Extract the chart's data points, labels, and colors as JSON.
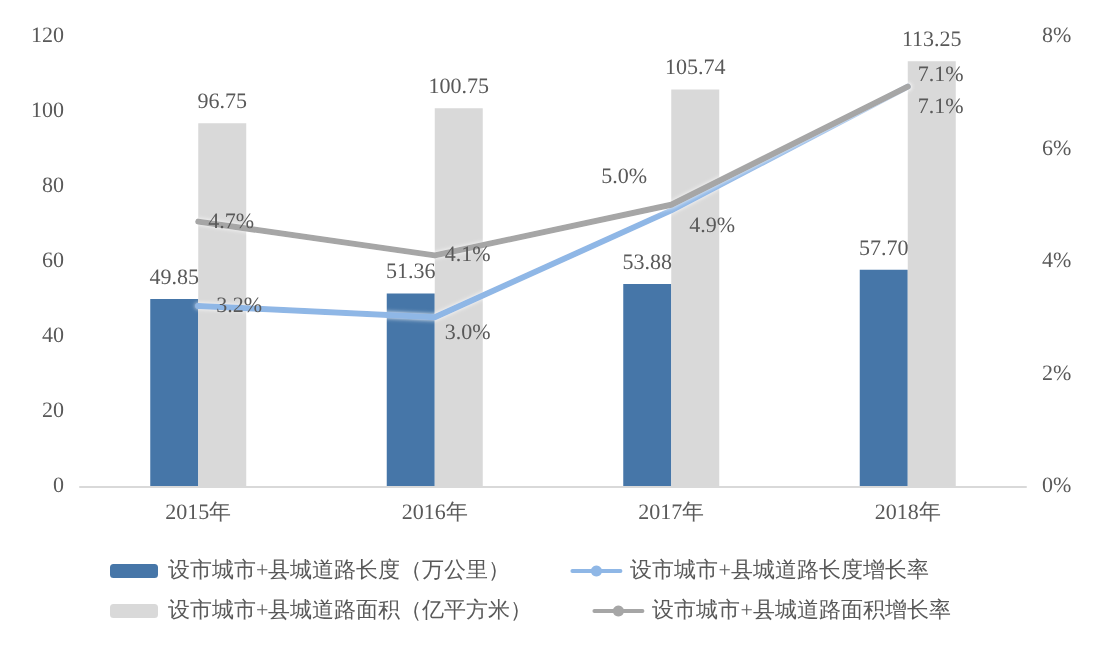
{
  "chart_data": {
    "type": "bar",
    "categories": [
      "2015年",
      "2016年",
      "2017年",
      "2018年"
    ],
    "series": [
      {
        "name": "设市城市+县城道路长度（万公里）",
        "color": "#4676a8",
        "values": [
          49.85,
          51.36,
          53.88,
          57.7
        ],
        "value_labels": [
          "49.85",
          "51.36",
          "53.88",
          "57.70"
        ]
      },
      {
        "name": "设市城市+县城道路面积（亿平方米）",
        "color": "#d9d9d9",
        "values": [
          96.75,
          100.75,
          105.74,
          113.25
        ],
        "value_labels": [
          "96.75",
          "100.75",
          "105.74",
          "113.25"
        ]
      },
      {
        "name": "设市城市+县城道路长度增长率",
        "type": "line",
        "axis": "y2",
        "color": "#8fb7e6",
        "values": [
          3.2,
          3.0,
          4.9,
          7.1
        ],
        "value_labels": [
          "3.2%",
          "3.0%",
          "4.9%",
          "7.1%"
        ]
      },
      {
        "name": "设市城市+县城道路面积增长率",
        "type": "line",
        "axis": "y2",
        "color": "#a6a6a6",
        "values": [
          4.7,
          4.1,
          5.0,
          7.1
        ],
        "value_labels": [
          "4.7%",
          "4.1%",
          "5.0%",
          "7.1%"
        ]
      }
    ],
    "ylim": [
      0,
      120
    ],
    "yticks": [
      0,
      20,
      40,
      60,
      80,
      100,
      120
    ],
    "y2lim": [
      0,
      8
    ],
    "y2ticks": [
      {
        "value": 0,
        "label": "0%"
      },
      {
        "value": 2,
        "label": "2%"
      },
      {
        "value": 4,
        "label": "4%"
      },
      {
        "value": 6,
        "label": "6%"
      },
      {
        "value": 8,
        "label": "8%"
      }
    ],
    "grid": false,
    "legend": "bottom",
    "marker": "none",
    "line_style": "solid"
  }
}
